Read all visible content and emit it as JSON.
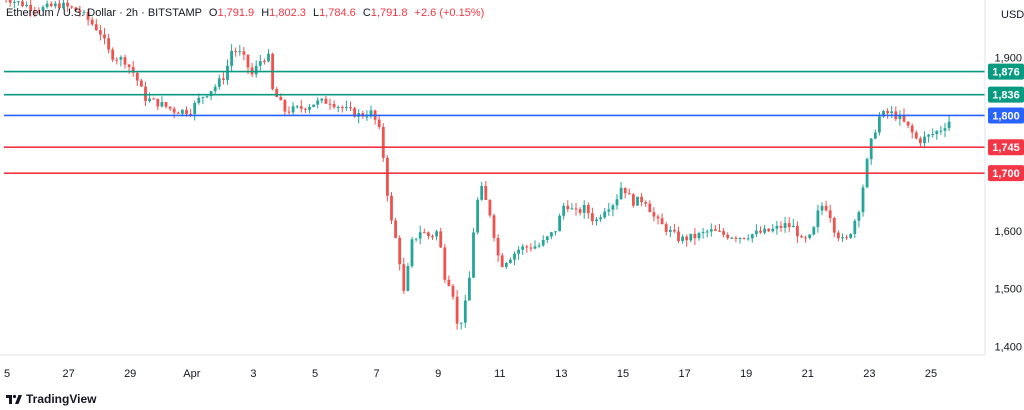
{
  "header": {
    "symbol": "Ethereum / U.S. Dollar · 2h · BITSTAMP",
    "open_label": "O",
    "open": "1,791.9",
    "high_label": "H",
    "high": "1,802.3",
    "low_label": "L",
    "low": "1,784.6",
    "close_label": "C",
    "close": "1,791.8",
    "change": "+2.6 (+0.15%)"
  },
  "currency": "USD",
  "footer": {
    "brand": "TradingView",
    "logo_icon": "tradingview-logo-icon"
  },
  "colors": {
    "up": "#26a69a",
    "down": "#ef5350",
    "resistance": "#089981",
    "pivot": "#2962ff",
    "support": "#f23645"
  },
  "chart_data": {
    "type": "candlestick",
    "ylim": [
      1385,
      2000
    ],
    "y_ticks": [
      {
        "value": 1900,
        "label": "1,900"
      },
      {
        "value": 1600,
        "label": "1,600"
      },
      {
        "value": 1500,
        "label": "1,500"
      },
      {
        "value": 1400,
        "label": "1,400"
      }
    ],
    "x_ticks": [
      "5",
      "27",
      "29",
      "Apr",
      "3",
      "5",
      "7",
      "9",
      "11",
      "13",
      "15",
      "17",
      "19",
      "21",
      "23",
      "25"
    ],
    "horizontal_levels": [
      {
        "value": 1876,
        "label": "1,876",
        "kind": "resistance"
      },
      {
        "value": 1836,
        "label": "1,836",
        "kind": "resistance"
      },
      {
        "value": 1800,
        "label": "1,800",
        "kind": "pivot"
      },
      {
        "value": 1745,
        "label": "1,745",
        "kind": "support"
      },
      {
        "value": 1700,
        "label": "1,700",
        "kind": "support"
      }
    ],
    "price_path": [
      {
        "x": 0,
        "y": 2010
      },
      {
        "x": 14,
        "y": 1998
      },
      {
        "x": 28,
        "y": 1990
      },
      {
        "x": 42,
        "y": 1985
      },
      {
        "x": 60,
        "y": 1992
      },
      {
        "x": 80,
        "y": 1980
      },
      {
        "x": 100,
        "y": 1945
      },
      {
        "x": 110,
        "y": 1905
      },
      {
        "x": 125,
        "y": 1895
      },
      {
        "x": 135,
        "y": 1870
      },
      {
        "x": 145,
        "y": 1830
      },
      {
        "x": 160,
        "y": 1820
      },
      {
        "x": 175,
        "y": 1808
      },
      {
        "x": 190,
        "y": 1808
      },
      {
        "x": 200,
        "y": 1830
      },
      {
        "x": 215,
        "y": 1850
      },
      {
        "x": 225,
        "y": 1870
      },
      {
        "x": 232,
        "y": 1915
      },
      {
        "x": 242,
        "y": 1905
      },
      {
        "x": 252,
        "y": 1870
      },
      {
        "x": 262,
        "y": 1900
      },
      {
        "x": 270,
        "y": 1900
      },
      {
        "x": 272,
        "y": 1845
      },
      {
        "x": 285,
        "y": 1808
      },
      {
        "x": 300,
        "y": 1812
      },
      {
        "x": 315,
        "y": 1822
      },
      {
        "x": 330,
        "y": 1825
      },
      {
        "x": 345,
        "y": 1810
      },
      {
        "x": 360,
        "y": 1800
      },
      {
        "x": 372,
        "y": 1805
      },
      {
        "x": 380,
        "y": 1770
      },
      {
        "x": 384,
        "y": 1720
      },
      {
        "x": 390,
        "y": 1625
      },
      {
        "x": 398,
        "y": 1570
      },
      {
        "x": 404,
        "y": 1490
      },
      {
        "x": 412,
        "y": 1580
      },
      {
        "x": 420,
        "y": 1600
      },
      {
        "x": 430,
        "y": 1590
      },
      {
        "x": 438,
        "y": 1600
      },
      {
        "x": 445,
        "y": 1520
      },
      {
        "x": 452,
        "y": 1505
      },
      {
        "x": 458,
        "y": 1425
      },
      {
        "x": 468,
        "y": 1490
      },
      {
        "x": 474,
        "y": 1610
      },
      {
        "x": 480,
        "y": 1680
      },
      {
        "x": 490,
        "y": 1630
      },
      {
        "x": 500,
        "y": 1540
      },
      {
        "x": 510,
        "y": 1555
      },
      {
        "x": 520,
        "y": 1570
      },
      {
        "x": 540,
        "y": 1575
      },
      {
        "x": 555,
        "y": 1600
      },
      {
        "x": 565,
        "y": 1650
      },
      {
        "x": 575,
        "y": 1630
      },
      {
        "x": 585,
        "y": 1640
      },
      {
        "x": 595,
        "y": 1615
      },
      {
        "x": 605,
        "y": 1640
      },
      {
        "x": 615,
        "y": 1650
      },
      {
        "x": 622,
        "y": 1680
      },
      {
        "x": 632,
        "y": 1650
      },
      {
        "x": 645,
        "y": 1655
      },
      {
        "x": 655,
        "y": 1620
      },
      {
        "x": 665,
        "y": 1605
      },
      {
        "x": 680,
        "y": 1585
      },
      {
        "x": 695,
        "y": 1590
      },
      {
        "x": 710,
        "y": 1600
      },
      {
        "x": 725,
        "y": 1593
      },
      {
        "x": 740,
        "y": 1590
      },
      {
        "x": 755,
        "y": 1595
      },
      {
        "x": 770,
        "y": 1600
      },
      {
        "x": 785,
        "y": 1610
      },
      {
        "x": 795,
        "y": 1605
      },
      {
        "x": 802,
        "y": 1580
      },
      {
        "x": 812,
        "y": 1590
      },
      {
        "x": 820,
        "y": 1645
      },
      {
        "x": 828,
        "y": 1640
      },
      {
        "x": 835,
        "y": 1600
      },
      {
        "x": 845,
        "y": 1578
      },
      {
        "x": 852,
        "y": 1605
      },
      {
        "x": 860,
        "y": 1645
      },
      {
        "x": 866,
        "y": 1710
      },
      {
        "x": 872,
        "y": 1760
      },
      {
        "x": 880,
        "y": 1800
      },
      {
        "x": 890,
        "y": 1805
      },
      {
        "x": 900,
        "y": 1795
      },
      {
        "x": 910,
        "y": 1775
      },
      {
        "x": 918,
        "y": 1755
      },
      {
        "x": 930,
        "y": 1765
      },
      {
        "x": 940,
        "y": 1775
      },
      {
        "x": 950,
        "y": 1792
      }
    ]
  }
}
